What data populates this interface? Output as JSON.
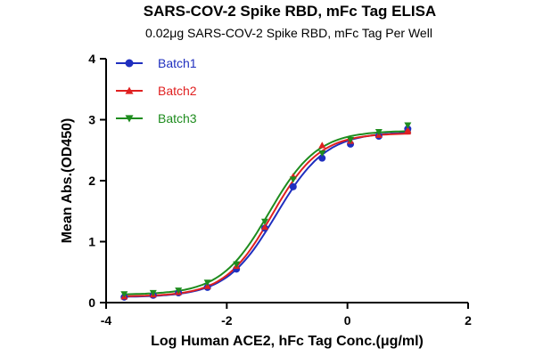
{
  "chart_data": {
    "type": "scatter",
    "title": "SARS-COV-2 Spike RBD, mFc Tag ELISA",
    "subtitle": "0.02μg SARS-COV-2 Spike RBD, mFc Tag Per Well",
    "xlabel": "Log Human ACE2, hFc Tag Conc.(μg/ml)",
    "ylabel": "Mean Abs.(OD450)",
    "xlim": [
      -4,
      2
    ],
    "ylim": [
      0,
      4
    ],
    "xticks": [
      -4,
      -2,
      0,
      2
    ],
    "yticks": [
      0,
      1,
      2,
      3,
      4
    ],
    "legend_position": "top-left",
    "grid": false,
    "curve_fit": "sigmoidal",
    "series": [
      {
        "name": "Batch1",
        "color": "#1f2fbf",
        "marker": "circle",
        "x": [
          -3.7,
          -3.22,
          -2.8,
          -2.32,
          -1.84,
          -1.37,
          -0.9,
          -0.42,
          0.05,
          0.52,
          1.0
        ],
        "y": [
          0.09,
          0.12,
          0.16,
          0.25,
          0.55,
          1.22,
          1.9,
          2.37,
          2.6,
          2.73,
          2.85
        ],
        "fit": {
          "bottom": 0.09,
          "top": 2.8,
          "logEC50": -1.18,
          "hill": 1.05
        }
      },
      {
        "name": "Batch2",
        "color": "#e02020",
        "marker": "triangle-up",
        "x": [
          -3.7,
          -3.22,
          -2.8,
          -2.32,
          -1.84,
          -1.37,
          -0.9,
          -0.42,
          0.05,
          0.52,
          1.0
        ],
        "y": [
          0.1,
          0.13,
          0.17,
          0.27,
          0.6,
          1.24,
          2.07,
          2.58,
          2.65,
          2.75,
          2.83
        ],
        "fit": {
          "bottom": 0.1,
          "top": 2.78,
          "logEC50": -1.25,
          "hill": 1.1
        }
      },
      {
        "name": "Batch3",
        "color": "#1e8c1e",
        "marker": "triangle-down",
        "x": [
          -3.7,
          -3.22,
          -2.8,
          -2.32,
          -1.84,
          -1.37,
          -0.9,
          -0.42,
          0.05,
          0.52,
          1.0
        ],
        "y": [
          0.14,
          0.16,
          0.2,
          0.33,
          0.63,
          1.33,
          2.02,
          2.45,
          2.67,
          2.8,
          2.91
        ],
        "fit": {
          "bottom": 0.13,
          "top": 2.82,
          "logEC50": -1.3,
          "hill": 1.08
        }
      }
    ]
  }
}
